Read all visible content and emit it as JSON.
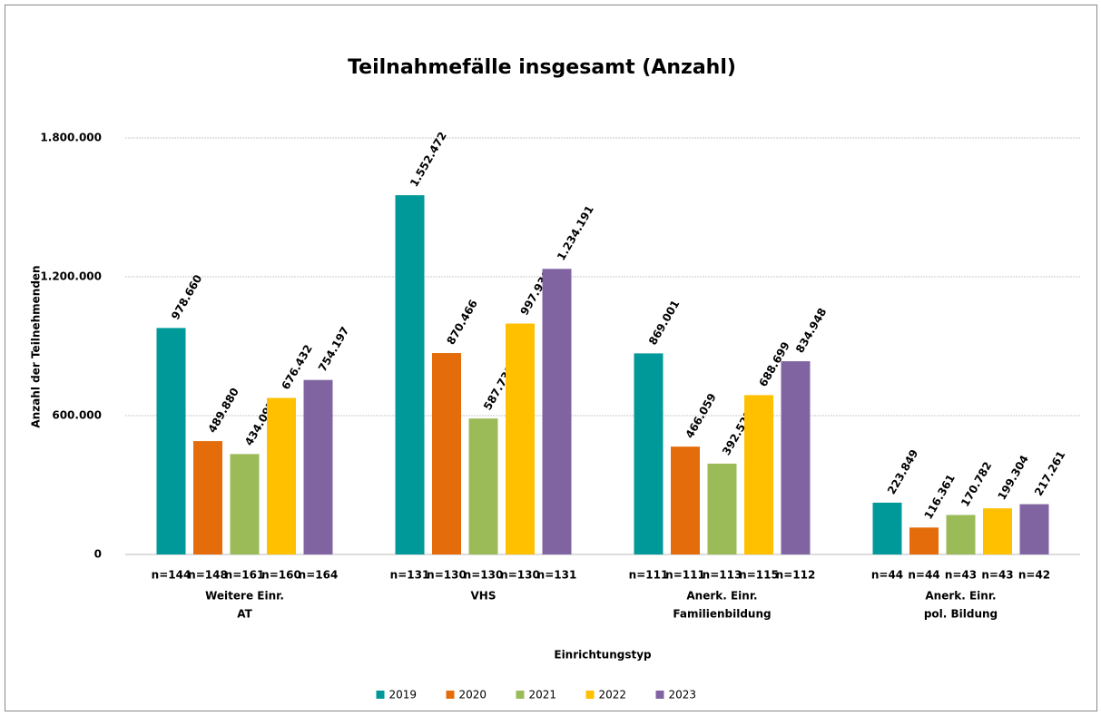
{
  "chart_data": {
    "type": "bar",
    "title": "Teilnahmefälle insgesamt (Anzahl)",
    "xlabel": "Einrichtungstyp",
    "ylabel": "Anzahl der Teilnehmenden",
    "categories": [
      [
        "Weitere Einr.",
        "AT"
      ],
      [
        "VHS"
      ],
      [
        "Anerk. Einr.",
        "Familienbildung"
      ],
      [
        "Anerk. Einr.",
        "pol. Bildung"
      ]
    ],
    "series": [
      {
        "name": "2019",
        "color": "#009999",
        "values": [
          978660,
          1552472,
          869001,
          223849
        ],
        "value_labels": [
          "978.660",
          "1.552.472",
          "869.001",
          "223.849"
        ],
        "sample_sizes": [
          "n=144",
          "n=131",
          "n=111",
          "n=44"
        ]
      },
      {
        "name": "2020",
        "color": "#e46c0a",
        "values": [
          489880,
          870466,
          466059,
          116361
        ],
        "value_labels": [
          "489.880",
          "870.466",
          "466.059",
          "116.361"
        ],
        "sample_sizes": [
          "n=148",
          "n=130",
          "n=111",
          "n=44"
        ]
      },
      {
        "name": "2021",
        "color": "#9bbb59",
        "values": [
          434097,
          587739,
          392522,
          170782
        ],
        "value_labels": [
          "434.097",
          "587.739",
          "392.522",
          "170.782"
        ],
        "sample_sizes": [
          "n=161",
          "n=130",
          "n=113",
          "n=43"
        ]
      },
      {
        "name": "2022",
        "color": "#ffc000",
        "values": [
          676432,
          997930,
          688699,
          199304
        ],
        "value_labels": [
          "676.432",
          "997.930",
          "688.699",
          "199.304"
        ],
        "sample_sizes": [
          "n=160",
          "n=130",
          "n=115",
          "n=43"
        ]
      },
      {
        "name": "2023",
        "color": "#8064a2",
        "values": [
          754197,
          1234191,
          834948,
          217261
        ],
        "value_labels": [
          "754.197",
          "1.234.191",
          "834.948",
          "217.261"
        ],
        "sample_sizes": [
          "n=164",
          "n=131",
          "n=112",
          "n=42"
        ]
      }
    ],
    "ylim": [
      0,
      1800000
    ],
    "yticks": [
      0,
      {
        "value": 600000,
        "label": "600.000"
      },
      {
        "value": 1200000,
        "label": "1.200.000"
      },
      {
        "value": 1800000,
        "label": "1.800.000"
      }
    ],
    "grid": true,
    "legend": "bottom"
  }
}
